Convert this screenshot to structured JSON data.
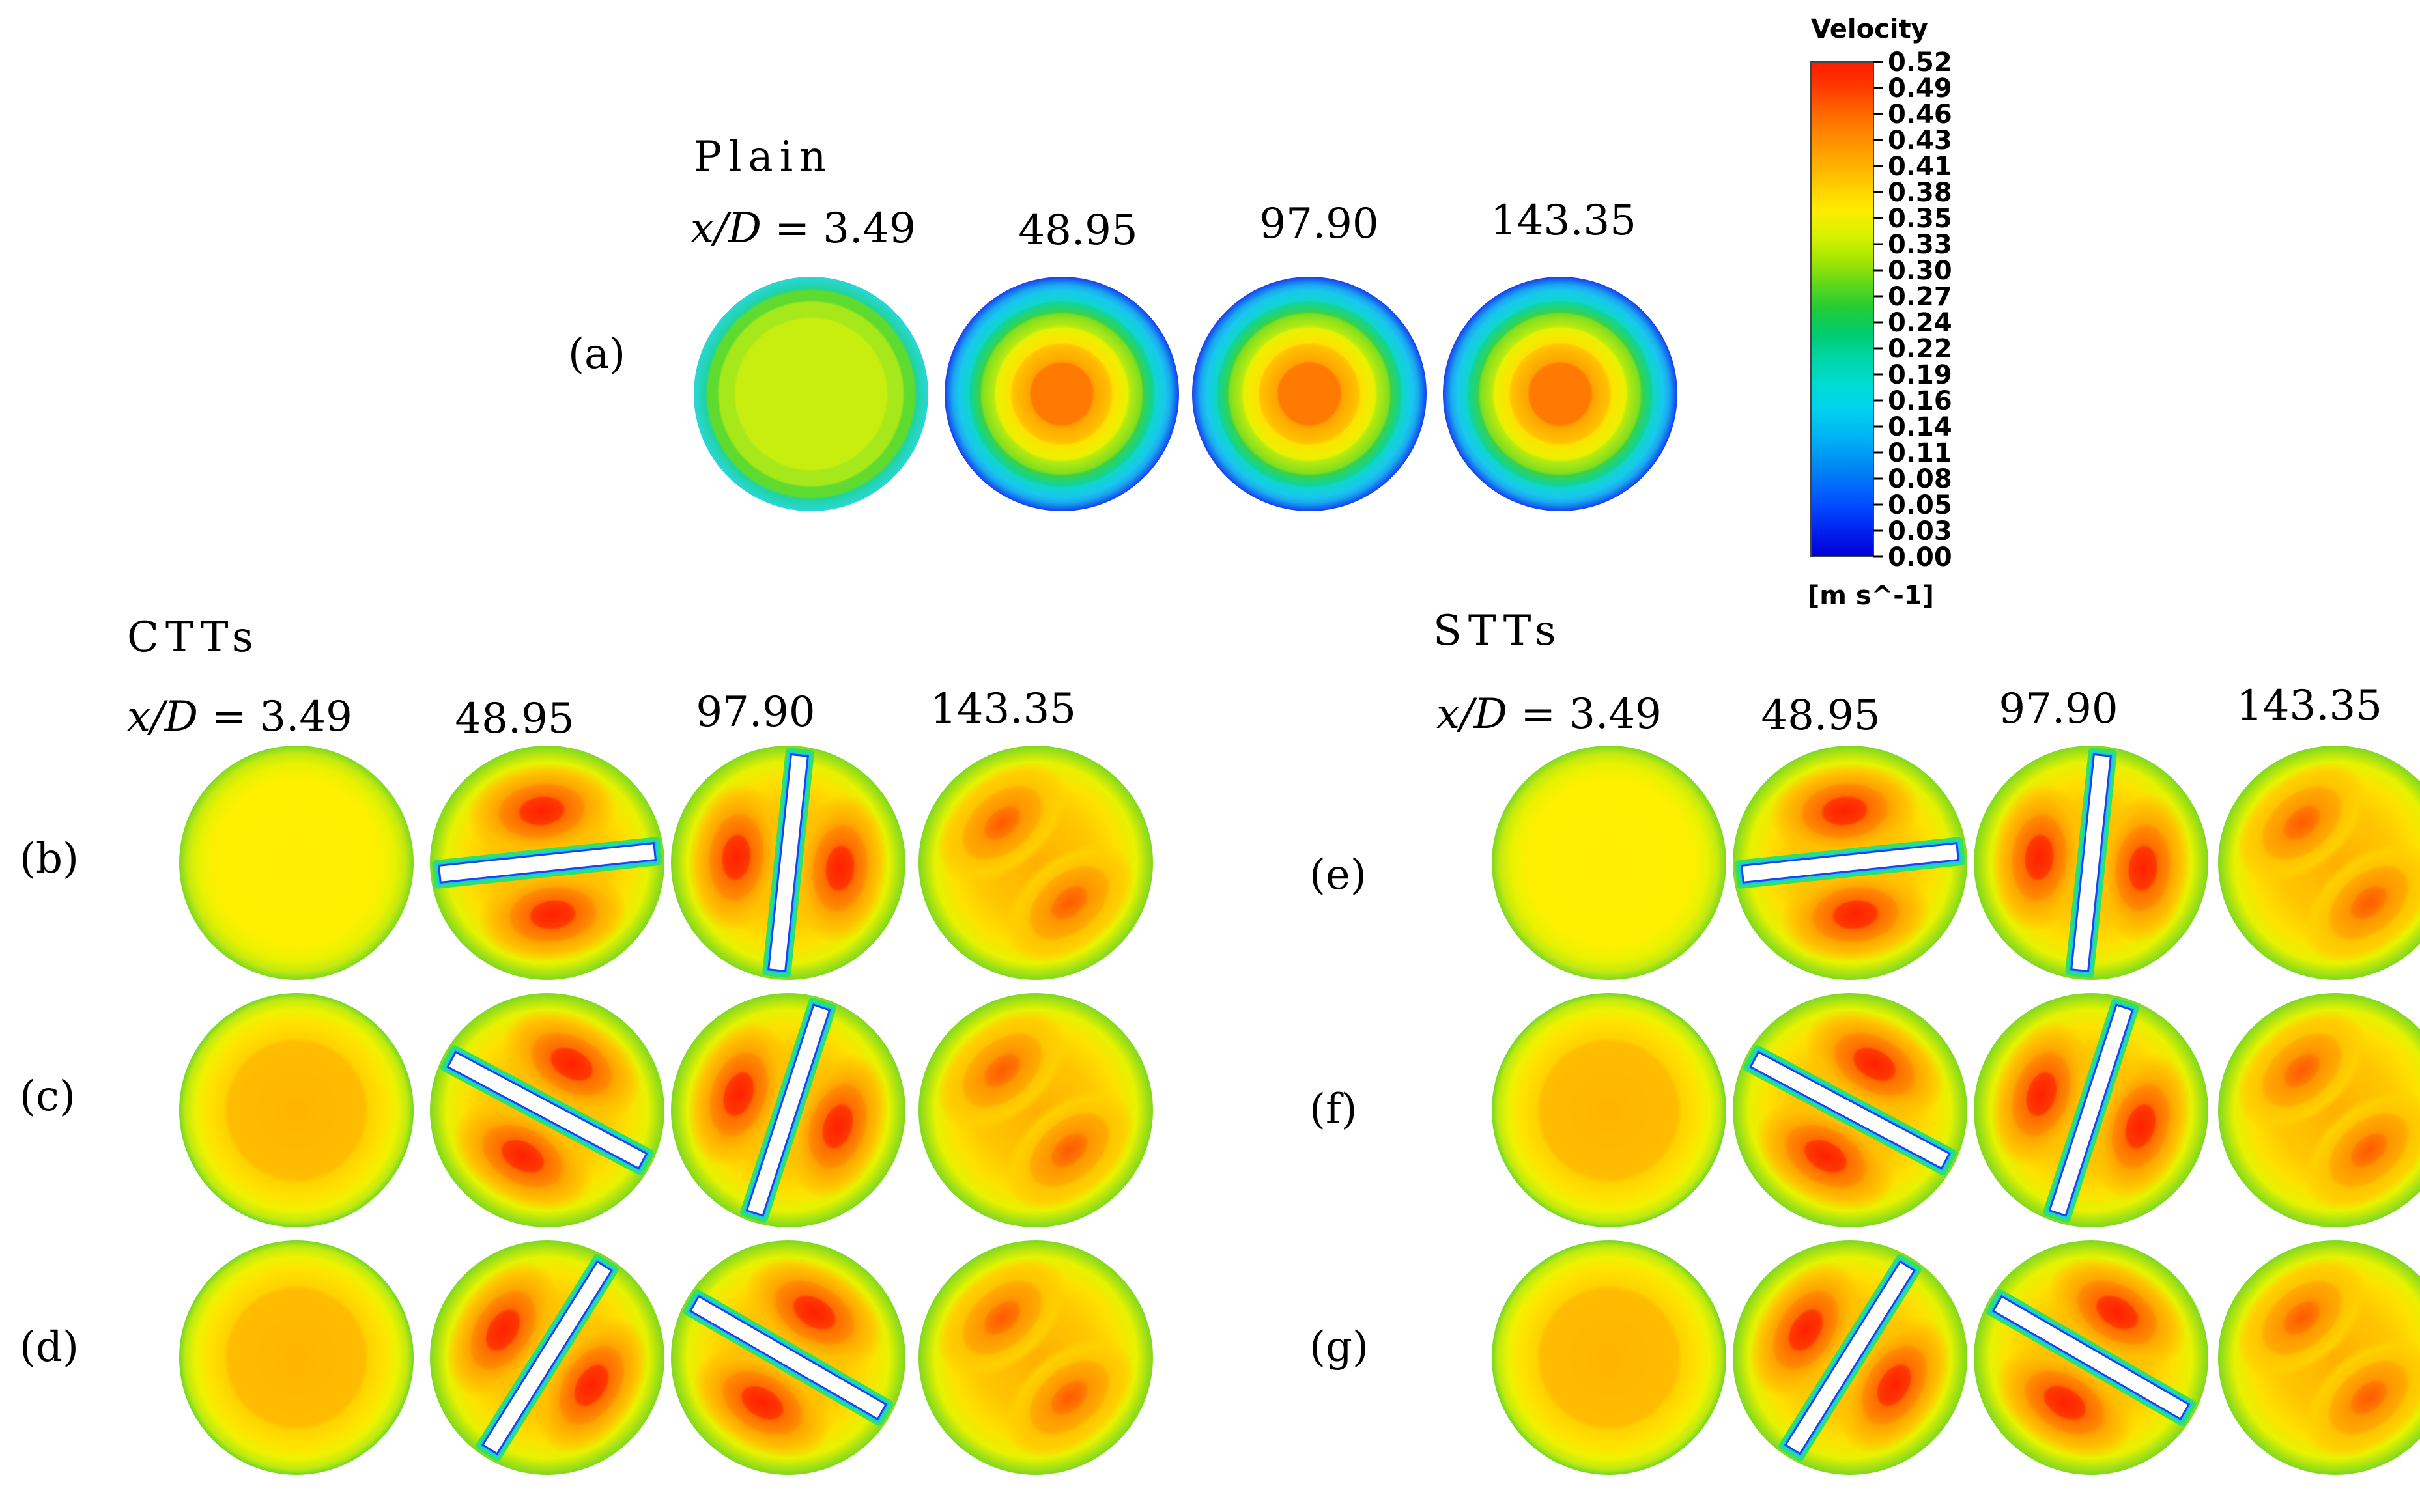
{
  "colormap": {
    "title": "Velocity",
    "units": "[m s^-1]",
    "ticks": [
      "0.52",
      "0.49",
      "0.46",
      "0.43",
      "0.41",
      "0.38",
      "0.35",
      "0.33",
      "0.30",
      "0.27",
      "0.24",
      "0.22",
      "0.19",
      "0.16",
      "0.14",
      "0.11",
      "0.08",
      "0.05",
      "0.03",
      "0.00"
    ],
    "colors_top_to_bottom": [
      "#ff1a00",
      "#ff4a00",
      "#ff7a00",
      "#ff9a00",
      "#ffbe00",
      "#ffe000",
      "#f0ff00",
      "#c8f000",
      "#90e400",
      "#30d020",
      "#00c860",
      "#00d89a",
      "#00dcc8",
      "#00d8e8",
      "#00c0f0",
      "#00a0f0",
      "#0080f0",
      "#0050ff",
      "#0020ff",
      "#0000e0"
    ]
  },
  "sections": {
    "plain": {
      "title": "Plain"
    },
    "ctts": {
      "title": "CTTs"
    },
    "stts": {
      "title": "STTs"
    }
  },
  "xd": {
    "prefix_italic": "x/D",
    "eq": " = 3.49",
    "values": [
      "48.95",
      "97.90",
      "143.35"
    ]
  },
  "row_labels": [
    "(a)",
    "(b)",
    "(c)",
    "(d)",
    "(e)",
    "(f)",
    "(g)"
  ]
}
